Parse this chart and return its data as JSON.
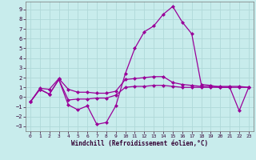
{
  "xlabel": "Windchill (Refroidissement éolien,°C)",
  "background_color": "#c8ecec",
  "grid_color": "#b0d8d8",
  "line_color": "#990099",
  "x": [
    0,
    1,
    2,
    3,
    4,
    5,
    6,
    7,
    8,
    9,
    10,
    11,
    12,
    13,
    14,
    15,
    16,
    17,
    18,
    19,
    20,
    21,
    22,
    23
  ],
  "line_main": [
    -0.5,
    0.8,
    0.3,
    1.8,
    -0.8,
    -1.3,
    -0.9,
    -2.8,
    -2.6,
    -0.9,
    2.4,
    5.0,
    6.7,
    7.3,
    8.5,
    9.3,
    7.7,
    6.5,
    1.3,
    1.2,
    1.0,
    1.0,
    -1.4,
    1.0
  ],
  "line_upper": [
    -0.5,
    0.9,
    0.8,
    1.9,
    0.8,
    0.5,
    0.5,
    0.4,
    0.4,
    0.6,
    1.8,
    1.9,
    2.0,
    2.1,
    2.1,
    1.5,
    1.3,
    1.2,
    1.1,
    1.1,
    1.1,
    1.1,
    1.1,
    1.0
  ],
  "line_lower": [
    -0.5,
    0.8,
    0.3,
    1.8,
    -0.3,
    -0.2,
    -0.2,
    -0.1,
    -0.1,
    0.2,
    1.0,
    1.1,
    1.1,
    1.2,
    1.2,
    1.1,
    1.0,
    1.0,
    1.0,
    1.0,
    1.0,
    1.0,
    1.0,
    1.0
  ],
  "ylim": [
    -3.5,
    9.8
  ],
  "xlim": [
    -0.5,
    23.5
  ],
  "yticks": [
    -3,
    -2,
    -1,
    0,
    1,
    2,
    3,
    4,
    5,
    6,
    7,
    8,
    9
  ],
  "xticks": [
    0,
    1,
    2,
    3,
    4,
    5,
    6,
    7,
    8,
    9,
    10,
    11,
    12,
    13,
    14,
    15,
    16,
    17,
    18,
    19,
    20,
    21,
    22,
    23
  ],
  "marker": "D",
  "markersize": 2.5,
  "linewidth": 0.9
}
